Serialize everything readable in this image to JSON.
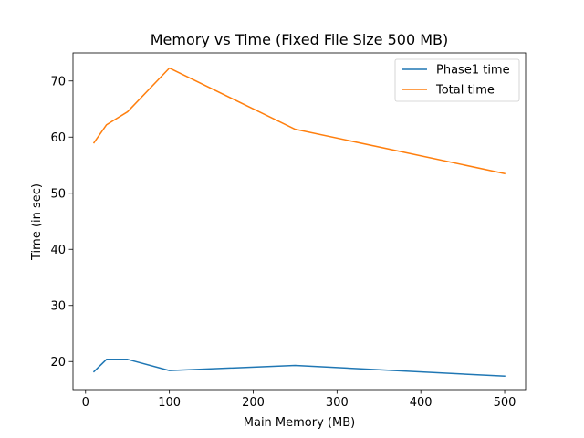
{
  "chart_data": {
    "type": "line",
    "title": "Memory vs Time (Fixed File Size 500 MB)",
    "xlabel": "Main Memory (MB)",
    "ylabel": "Time (in sec)",
    "xlim": [
      -15,
      525
    ],
    "ylim": [
      15,
      75
    ],
    "xticks": [
      0,
      100,
      200,
      300,
      400,
      500
    ],
    "yticks": [
      20,
      30,
      40,
      50,
      60,
      70
    ],
    "grid": false,
    "legend_position": "top-right",
    "series": [
      {
        "name": "Phase1 time",
        "color": "#1f77b4",
        "x": [
          10,
          25,
          50,
          100,
          250,
          500
        ],
        "y": [
          18.2,
          20.4,
          20.4,
          18.4,
          19.3,
          17.4
        ]
      },
      {
        "name": "Total time",
        "color": "#ff7f0e",
        "x": [
          10,
          25,
          50,
          100,
          250,
          500
        ],
        "y": [
          59.0,
          62.2,
          64.5,
          72.3,
          61.4,
          53.5
        ]
      }
    ]
  }
}
